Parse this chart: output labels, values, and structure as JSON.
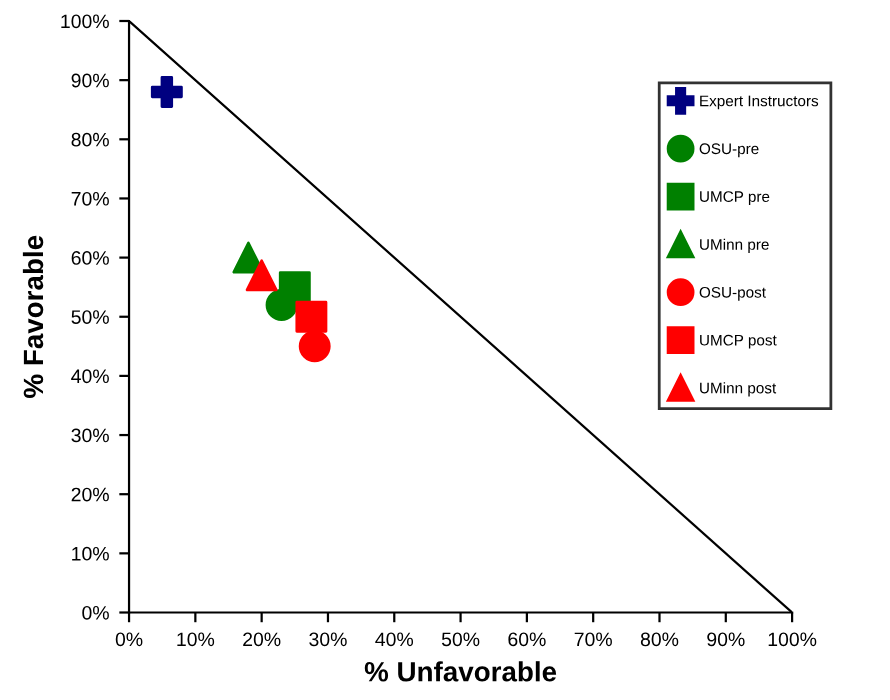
{
  "chart_data": {
    "type": "scatter",
    "xlabel": "% Unfavorable",
    "ylabel": "% Favorable",
    "xlim": [
      0,
      100
    ],
    "ylim": [
      0,
      100
    ],
    "xticks": [
      {
        "value": 0,
        "label": "0%"
      },
      {
        "value": 10,
        "label": "10%"
      },
      {
        "value": 20,
        "label": "20%"
      },
      {
        "value": 30,
        "label": "30%"
      },
      {
        "value": 40,
        "label": "40%"
      },
      {
        "value": 50,
        "label": "50%"
      },
      {
        "value": 60,
        "label": "60%"
      },
      {
        "value": 70,
        "label": "70%"
      },
      {
        "value": 80,
        "label": "80%"
      },
      {
        "value": 90,
        "label": "90%"
      },
      {
        "value": 100,
        "label": "100%"
      }
    ],
    "yticks": [
      {
        "value": 0,
        "label": "0%"
      },
      {
        "value": 10,
        "label": "10%"
      },
      {
        "value": 20,
        "label": "20%"
      },
      {
        "value": 30,
        "label": "30%"
      },
      {
        "value": 40,
        "label": "40%"
      },
      {
        "value": 50,
        "label": "50%"
      },
      {
        "value": 60,
        "label": "60%"
      },
      {
        "value": 70,
        "label": "70%"
      },
      {
        "value": 80,
        "label": "80%"
      },
      {
        "value": 90,
        "label": "90%"
      },
      {
        "value": 100,
        "label": "100%"
      }
    ],
    "legend": "right",
    "grid": false,
    "series": [
      {
        "type": "line",
        "color": "#000000",
        "x": [
          0,
          100
        ],
        "values": [
          100,
          0
        ],
        "marker": "none"
      },
      {
        "name": "Expert Instructors",
        "color": "#000080",
        "marker": "cross",
        "x": [
          5.7
        ],
        "values": [
          88
        ]
      },
      {
        "name": "OSU-pre",
        "color": "#008000",
        "marker": "circle",
        "x": [
          23
        ],
        "values": [
          52
        ]
      },
      {
        "name": "UMCP pre",
        "color": "#008000",
        "marker": "square",
        "x": [
          25
        ],
        "values": [
          55
        ]
      },
      {
        "name": "UMinn pre",
        "color": "#008000",
        "marker": "triangle",
        "x": [
          18
        ],
        "values": [
          60
        ]
      },
      {
        "name": "OSU-post",
        "color": "#ff0000",
        "marker": "circle",
        "x": [
          28
        ],
        "values": [
          45
        ]
      },
      {
        "name": "UMCP post",
        "color": "#ff0000",
        "marker": "square",
        "x": [
          27.5
        ],
        "values": [
          50
        ]
      },
      {
        "name": "UMinn post",
        "color": "#ff0000",
        "marker": "triangle",
        "x": [
          20
        ],
        "values": [
          57
        ]
      }
    ]
  }
}
